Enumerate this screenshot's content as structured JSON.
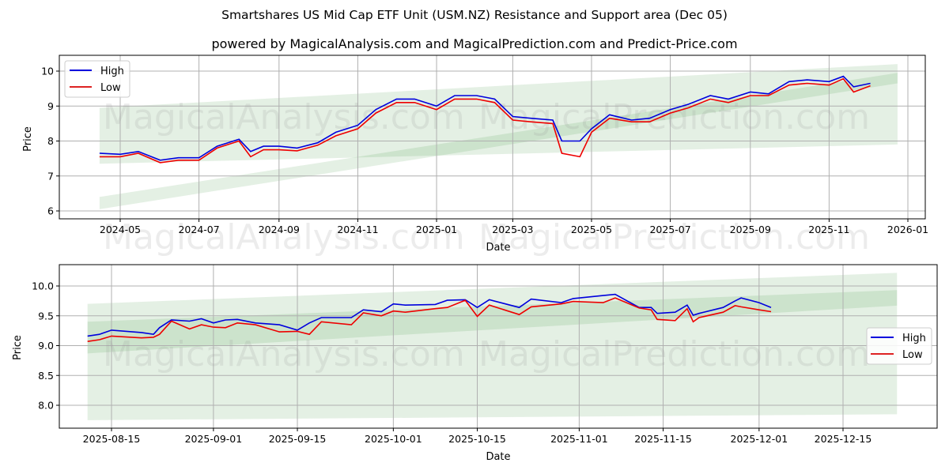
{
  "header": {
    "title": "Smartshares US Mid Cap ETF Unit (USM.NZ) Resistance and Support area (Dec 05)",
    "subtitle": "powered by MagicalAnalysis.com and MagicalPrediction.com and Predict-Price.com"
  },
  "watermarks": [
    "MagicalAnalysis.com",
    "MagicalPrediction.com"
  ],
  "colors": {
    "high": "#0000dd",
    "low": "#ee0000",
    "band_light": "#d9ead9",
    "band_dark": "#c2dfc2",
    "grid": "#b0b0b0"
  },
  "chart_data": [
    {
      "type": "line",
      "title": "Smartshares US Mid Cap ETF Unit (USM.NZ) Resistance and Support area (Dec 05)",
      "xlabel": "Date",
      "ylabel": "Price",
      "ylim": [
        5.8,
        10.45
      ],
      "yticks": [
        "6",
        "7",
        "8",
        "9",
        "10"
      ],
      "xticks": [
        "2024-05",
        "2024-07",
        "2024-09",
        "2024-11",
        "2025-01",
        "2025-03",
        "2025-05",
        "2025-07",
        "2025-09",
        "2025-11",
        "2026-01"
      ],
      "grid": true,
      "legend": {
        "position": "upper left",
        "entries": [
          "High",
          "Low"
        ]
      },
      "x": [
        "2024-04-15",
        "2024-05-01",
        "2024-05-15",
        "2024-06-01",
        "2024-06-15",
        "2024-07-01",
        "2024-07-15",
        "2024-08-01",
        "2024-08-10",
        "2024-08-20",
        "2024-09-01",
        "2024-09-15",
        "2024-10-01",
        "2024-10-15",
        "2024-11-01",
        "2024-11-15",
        "2024-12-01",
        "2024-12-15",
        "2025-01-01",
        "2025-01-15",
        "2025-02-01",
        "2025-02-15",
        "2025-03-01",
        "2025-03-15",
        "2025-04-01",
        "2025-04-08",
        "2025-04-22",
        "2025-05-01",
        "2025-05-15",
        "2025-06-01",
        "2025-06-15",
        "2025-07-01",
        "2025-07-15",
        "2025-08-01",
        "2025-08-15",
        "2025-09-01",
        "2025-09-15",
        "2025-10-01",
        "2025-10-15",
        "2025-11-01",
        "2025-11-12",
        "2025-11-20",
        "2025-12-03"
      ],
      "series": [
        {
          "name": "High",
          "values": [
            7.65,
            7.62,
            7.7,
            7.45,
            7.52,
            7.52,
            7.85,
            8.05,
            7.7,
            7.85,
            7.85,
            7.8,
            7.95,
            8.25,
            8.45,
            8.9,
            9.2,
            9.2,
            9.0,
            9.3,
            9.3,
            9.2,
            8.7,
            8.65,
            8.6,
            8.0,
            8.0,
            8.35,
            8.75,
            8.6,
            8.65,
            8.9,
            9.05,
            9.3,
            9.2,
            9.4,
            9.35,
            9.7,
            9.75,
            9.7,
            9.85,
            9.55,
            9.65
          ]
        },
        {
          "name": "Low",
          "values": [
            7.55,
            7.55,
            7.65,
            7.38,
            7.45,
            7.45,
            7.8,
            8.0,
            7.55,
            7.75,
            7.75,
            7.72,
            7.88,
            8.15,
            8.35,
            8.8,
            9.1,
            9.1,
            8.9,
            9.2,
            9.2,
            9.1,
            8.6,
            8.55,
            8.5,
            7.65,
            7.55,
            8.25,
            8.65,
            8.55,
            8.55,
            8.8,
            8.95,
            9.2,
            9.1,
            9.3,
            9.3,
            9.6,
            9.65,
            9.6,
            9.78,
            9.4,
            9.58
          ]
        }
      ],
      "bands": [
        {
          "name": "outer",
          "x_start": "2024-04-15",
          "x_end": "2025-12-24",
          "upper_start": 8.95,
          "upper_end": 10.2,
          "lower_start": 7.35,
          "lower_end": 7.9
        },
        {
          "name": "inner",
          "x_start": "2024-04-15",
          "x_end": "2025-12-24",
          "upper_start": 6.4,
          "upper_end": 9.95,
          "lower_start": 6.05,
          "lower_end": 9.65
        }
      ]
    },
    {
      "type": "line",
      "xlabel": "Date",
      "ylabel": "Price",
      "ylim": [
        7.65,
        10.35
      ],
      "yticks": [
        "8.0",
        "8.5",
        "9.0",
        "9.5",
        "10.0"
      ],
      "xticks": [
        "2025-08-15",
        "2025-09-01",
        "2025-09-15",
        "2025-10-01",
        "2025-10-15",
        "2025-11-01",
        "2025-11-15",
        "2025-12-01",
        "2025-12-15"
      ],
      "grid": true,
      "legend": {
        "position": "center right",
        "entries": [
          "High",
          "Low"
        ]
      },
      "x": [
        "2025-08-11",
        "2025-08-13",
        "2025-08-15",
        "2025-08-20",
        "2025-08-22",
        "2025-08-23",
        "2025-08-25",
        "2025-08-28",
        "2025-08-30",
        "2025-09-01",
        "2025-09-03",
        "2025-09-05",
        "2025-09-08",
        "2025-09-12",
        "2025-09-15",
        "2025-09-17",
        "2025-09-19",
        "2025-09-24",
        "2025-09-26",
        "2025-09-29",
        "2025-10-01",
        "2025-10-03",
        "2025-10-08",
        "2025-10-10",
        "2025-10-13",
        "2025-10-15",
        "2025-10-17",
        "2025-10-22",
        "2025-10-24",
        "2025-10-29",
        "2025-10-31",
        "2025-11-05",
        "2025-11-07",
        "2025-11-11",
        "2025-11-13",
        "2025-11-14",
        "2025-11-17",
        "2025-11-19",
        "2025-11-20",
        "2025-11-21",
        "2025-11-25",
        "2025-11-27",
        "2025-11-28",
        "2025-12-01",
        "2025-12-03"
      ],
      "series": [
        {
          "name": "High",
          "values": [
            9.16,
            9.19,
            9.26,
            9.22,
            9.19,
            9.3,
            9.43,
            9.41,
            9.45,
            9.38,
            9.43,
            9.44,
            9.38,
            9.35,
            9.26,
            9.38,
            9.47,
            9.47,
            9.6,
            9.57,
            9.7,
            9.68,
            9.69,
            9.76,
            9.77,
            9.64,
            9.77,
            9.64,
            9.78,
            9.72,
            9.79,
            9.84,
            9.86,
            9.64,
            9.64,
            9.54,
            9.56,
            9.68,
            9.51,
            9.54,
            9.64,
            9.75,
            9.8,
            9.72,
            9.64
          ]
        },
        {
          "name": "Low",
          "values": [
            9.07,
            9.1,
            9.16,
            9.13,
            9.14,
            9.19,
            9.41,
            9.28,
            9.35,
            9.31,
            9.3,
            9.38,
            9.35,
            9.23,
            9.24,
            9.19,
            9.4,
            9.35,
            9.55,
            9.5,
            9.58,
            9.56,
            9.62,
            9.64,
            9.76,
            9.49,
            9.68,
            9.52,
            9.65,
            9.7,
            9.74,
            9.72,
            9.8,
            9.63,
            9.6,
            9.44,
            9.42,
            9.62,
            9.4,
            9.47,
            9.56,
            9.67,
            9.65,
            9.6,
            9.57
          ]
        }
      ],
      "bands": [
        {
          "name": "outer",
          "x_start": "2025-08-11",
          "x_end": "2025-12-24",
          "upper_start": 9.7,
          "upper_end": 10.22,
          "lower_start": 7.75,
          "lower_end": 7.85
        },
        {
          "name": "inner",
          "x_start": "2025-08-11",
          "x_end": "2025-12-24",
          "upper_start": 9.4,
          "upper_end": 9.93,
          "lower_start": 8.87,
          "lower_end": 9.67
        }
      ]
    }
  ]
}
